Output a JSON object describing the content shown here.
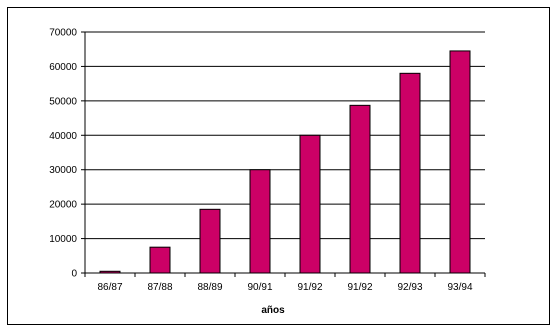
{
  "chart_data": {
    "type": "bar",
    "categories": [
      "86/87",
      "87/88",
      "88/89",
      "90/91",
      "91/92",
      "91/92",
      "92/93",
      "93/94"
    ],
    "values": [
      500,
      7500,
      18500,
      30000,
      40000,
      48700,
      58000,
      64500
    ],
    "title": "",
    "xlabel": "años",
    "ylabel": "",
    "ylim": [
      0,
      70000
    ],
    "yticks": [
      "0",
      "10000",
      "20000",
      "30000",
      "40000",
      "50000",
      "60000",
      "70000"
    ],
    "grid": "horizontal",
    "legend": "none",
    "colors": {
      "bar": "#cc0066",
      "bar_outline": "#000000",
      "grid": "#000000",
      "axis": "#000000"
    }
  }
}
